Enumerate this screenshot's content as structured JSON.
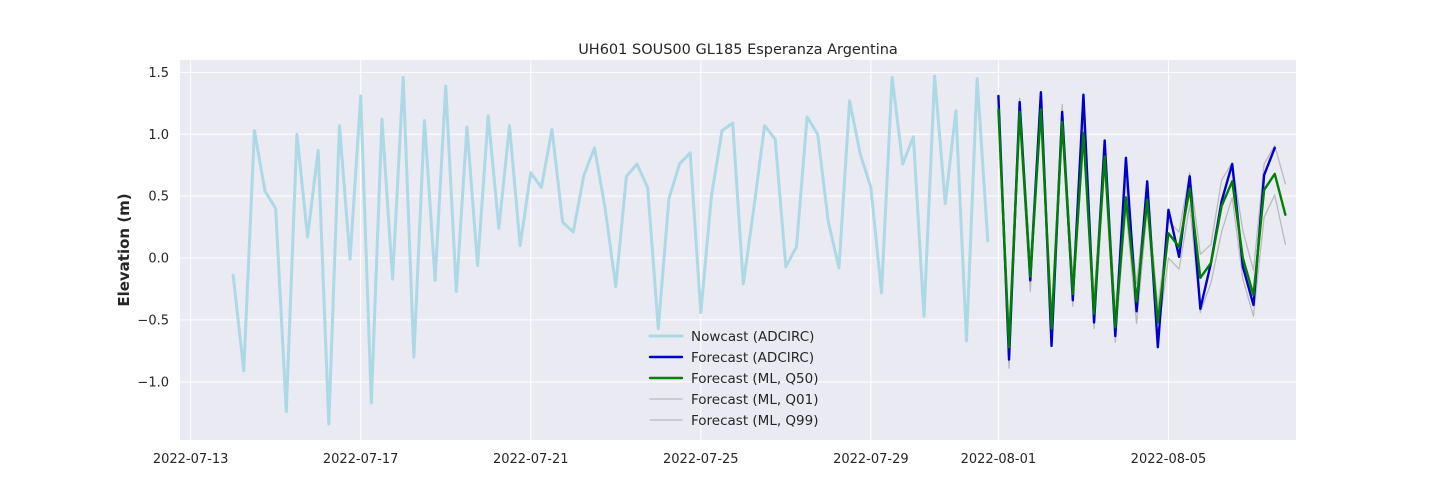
{
  "chart_data": {
    "type": "line",
    "title": "UH601 SOUS00 GL185 Esperanza Argentina",
    "xlabel": "",
    "ylabel": "Elevation (m)",
    "x_range": [
      "2022-07-12 18:00",
      "2022-08-08 00:00"
    ],
    "ylim": [
      -1.47,
      1.6
    ],
    "grid": true,
    "legend_position": "lower center",
    "x_ticks": [
      "2022-07-13",
      "2022-07-17",
      "2022-07-21",
      "2022-07-25",
      "2022-07-29",
      "2022-08-01",
      "2022-08-05"
    ],
    "y_ticks": [
      -1.0,
      -0.5,
      0.0,
      0.5,
      1.0,
      1.5
    ],
    "series": [
      {
        "name": "Nowcast (ADCIRC)",
        "color": "#add8e6",
        "start": "2022-07-14 00:00",
        "step_hours": 6,
        "values": [
          -0.14,
          -0.91,
          1.03,
          0.54,
          0.4,
          -1.24,
          1.0,
          0.17,
          0.87,
          -1.34,
          1.07,
          -0.01,
          1.31,
          -1.17,
          1.12,
          -0.17,
          1.46,
          -0.8,
          1.11,
          -0.18,
          1.39,
          -0.27,
          1.06,
          -0.06,
          1.15,
          0.24,
          1.07,
          0.1,
          0.69,
          0.57,
          1.04,
          0.29,
          0.21,
          0.67,
          0.89,
          0.4,
          -0.23,
          0.66,
          0.76,
          0.57,
          -0.57,
          0.48,
          0.76,
          0.85,
          -0.44,
          0.5,
          1.03,
          1.09,
          -0.21,
          0.41,
          1.07,
          0.96,
          -0.07,
          0.09,
          1.14,
          1.0,
          0.29,
          -0.08,
          1.27,
          0.84,
          0.57,
          -0.28,
          1.46,
          0.76,
          0.98,
          -0.47,
          1.47,
          0.44,
          1.19,
          -0.67,
          1.45,
          0.14
        ]
      },
      {
        "name": "Forecast (ADCIRC)",
        "color": "#0000cd",
        "start": "2022-08-01 00:00",
        "step_hours": 6,
        "values": [
          1.31,
          -0.82,
          1.26,
          -0.18,
          1.34,
          -0.71,
          1.18,
          -0.34,
          1.32,
          -0.52,
          0.95,
          -0.63,
          0.81,
          -0.43,
          0.62,
          -0.72,
          0.39,
          0.01,
          0.66,
          -0.41,
          -0.04,
          0.46,
          0.76,
          -0.07,
          -0.38,
          0.67,
          0.89
        ]
      },
      {
        "name": "Forecast (ML, Q50)",
        "color": "#008000",
        "start": "2022-08-01 00:00",
        "step_hours": 6,
        "values": [
          1.2,
          -0.72,
          1.18,
          -0.15,
          1.2,
          -0.57,
          1.1,
          -0.29,
          1.01,
          -0.45,
          0.82,
          -0.56,
          0.49,
          -0.35,
          0.47,
          -0.52,
          0.2,
          0.09,
          0.56,
          -0.16,
          -0.04,
          0.42,
          0.62,
          0.0,
          -0.3,
          0.55,
          0.68,
          0.35
        ]
      },
      {
        "name": "Forecast (ML, Q01)",
        "color": "#bbbbbb",
        "start": "2022-08-01 00:00",
        "step_hours": 6,
        "values": [
          1.17,
          -0.89,
          1.12,
          -0.27,
          1.18,
          -0.69,
          1.07,
          -0.39,
          0.95,
          -0.57,
          0.72,
          -0.68,
          0.41,
          -0.53,
          0.39,
          -0.63,
          0.0,
          -0.09,
          0.43,
          -0.44,
          -0.2,
          0.21,
          0.49,
          -0.17,
          -0.47,
          0.33,
          0.51,
          0.11
        ]
      },
      {
        "name": "Forecast (ML, Q99)",
        "color": "#bbbbbb",
        "start": "2022-08-01 00:00",
        "step_hours": 6,
        "values": [
          1.26,
          -0.57,
          1.29,
          -0.03,
          1.32,
          -0.45,
          1.24,
          -0.17,
          1.1,
          -0.31,
          0.93,
          -0.41,
          0.62,
          -0.21,
          0.57,
          -0.4,
          0.3,
          0.21,
          0.69,
          0.03,
          0.11,
          0.63,
          0.77,
          0.22,
          -0.1,
          0.76,
          0.91,
          0.6
        ]
      }
    ]
  }
}
